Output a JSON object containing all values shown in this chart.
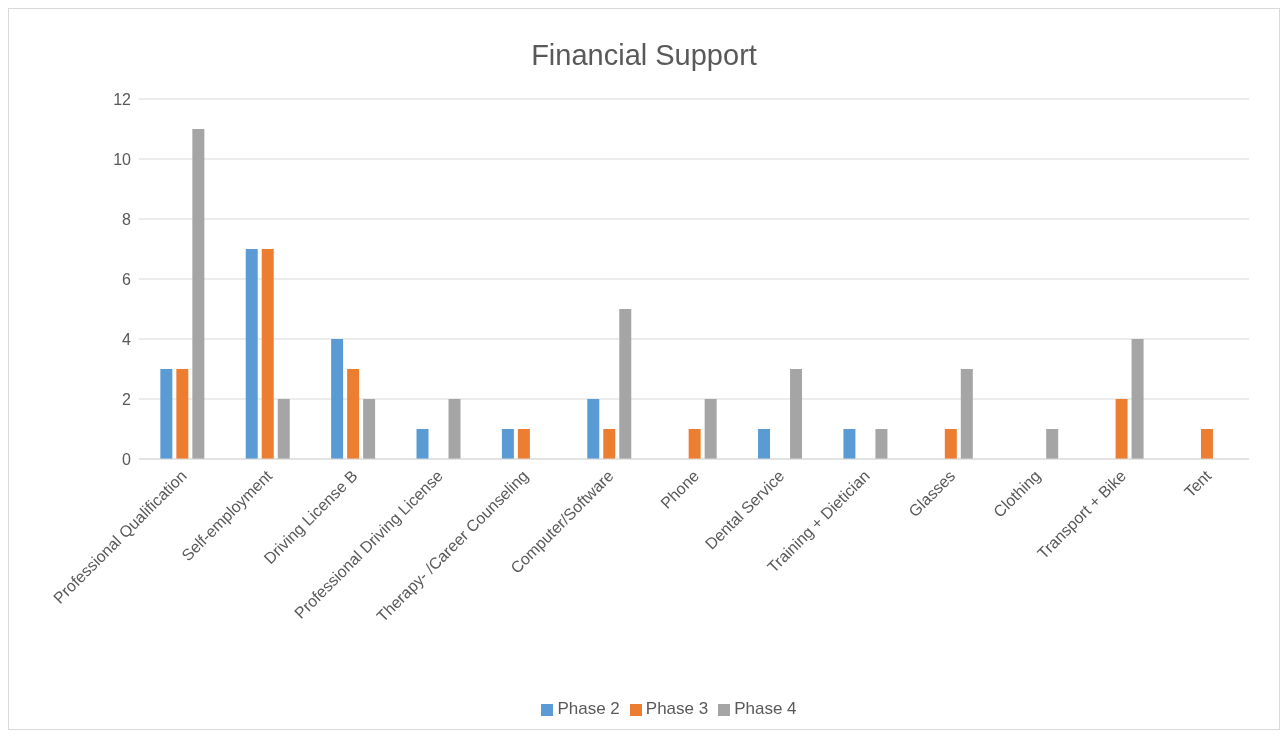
{
  "chart_data": {
    "type": "bar",
    "title": "Financial Support",
    "categories": [
      "Professional Qualification",
      "Self-employment",
      "Driving License B",
      "Professional Driving License",
      "Therapy- /Career Counseling",
      "Computer/Software",
      "Phone",
      "Dental Service",
      "Training + Dietician",
      "Glasses",
      "Clothing",
      "Transport + Bike",
      "Tent"
    ],
    "series": [
      {
        "name": "Phase 2",
        "color": "#5b9bd5",
        "values": [
          3,
          7,
          4,
          1,
          1,
          2,
          0,
          1,
          1,
          0,
          0,
          0,
          0
        ]
      },
      {
        "name": "Phase 3",
        "color": "#ed7d31",
        "values": [
          3,
          7,
          3,
          0,
          1,
          1,
          1,
          0,
          0,
          1,
          0,
          2,
          1
        ]
      },
      {
        "name": "Phase 4",
        "color": "#a5a5a5",
        "values": [
          11,
          2,
          2,
          2,
          0,
          5,
          2,
          3,
          1,
          3,
          1,
          4,
          0
        ]
      }
    ],
    "ylim": [
      0,
      12
    ],
    "yticks": [
      0,
      2,
      4,
      6,
      8,
      10,
      12
    ],
    "grid": "y",
    "legend": "bottom"
  }
}
